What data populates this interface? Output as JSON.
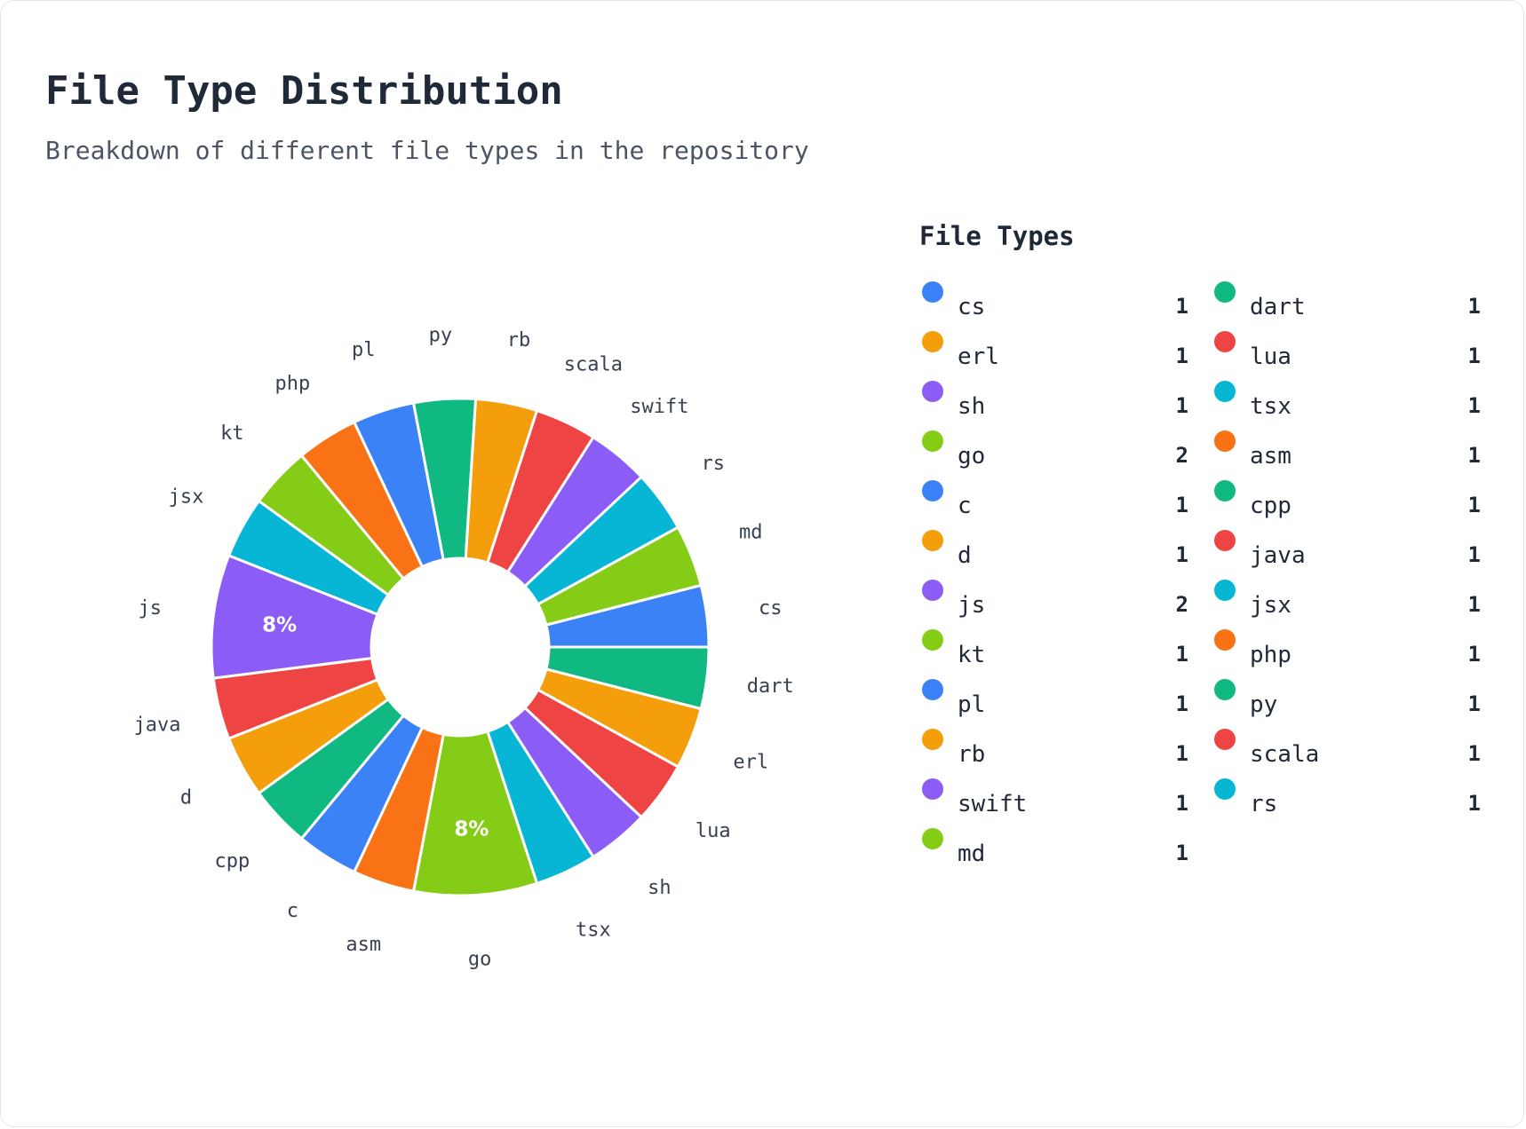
{
  "title": "File Type Distribution",
  "subtitle": "Breakdown of different file types in the repository",
  "legend_title": "File Types",
  "colors": [
    "#3b82f6",
    "#f59e0b",
    "#8b5cf6",
    "#84cc16",
    "#10b981",
    "#ef4444",
    "#06b6d4",
    "#f97316"
  ],
  "chart_data": {
    "type": "pie",
    "hole": true,
    "categories": [
      "cs",
      "erl",
      "sh",
      "go",
      "c",
      "d",
      "js",
      "kt",
      "pl",
      "rb",
      "swift",
      "md",
      "dart",
      "lua",
      "tsx",
      "asm",
      "cpp",
      "java",
      "jsx",
      "php",
      "py",
      "scala",
      "rs"
    ],
    "values": [
      1,
      1,
      1,
      2,
      1,
      1,
      2,
      1,
      1,
      1,
      1,
      1,
      1,
      1,
      1,
      1,
      1,
      1,
      1,
      1,
      1,
      1,
      1
    ],
    "colors": [
      "#3b82f6",
      "#f59e0b",
      "#8b5cf6",
      "#84cc16",
      "#3b82f6",
      "#f59e0b",
      "#8b5cf6",
      "#84cc16",
      "#3b82f6",
      "#f59e0b",
      "#8b5cf6",
      "#84cc16",
      "#10b981",
      "#ef4444",
      "#06b6d4",
      "#f97316",
      "#10b981",
      "#ef4444",
      "#06b6d4",
      "#f97316",
      "#10b981",
      "#ef4444",
      "#06b6d4"
    ],
    "percent_labels": {
      "go": "8%",
      "js": "8%"
    },
    "slice_order": [
      "cs",
      "dart",
      "erl",
      "lua",
      "sh",
      "tsx",
      "go",
      "asm",
      "c",
      "cpp",
      "d",
      "java",
      "js",
      "jsx",
      "kt",
      "php",
      "pl",
      "py",
      "rb",
      "scala",
      "swift",
      "rs",
      "md"
    ]
  }
}
